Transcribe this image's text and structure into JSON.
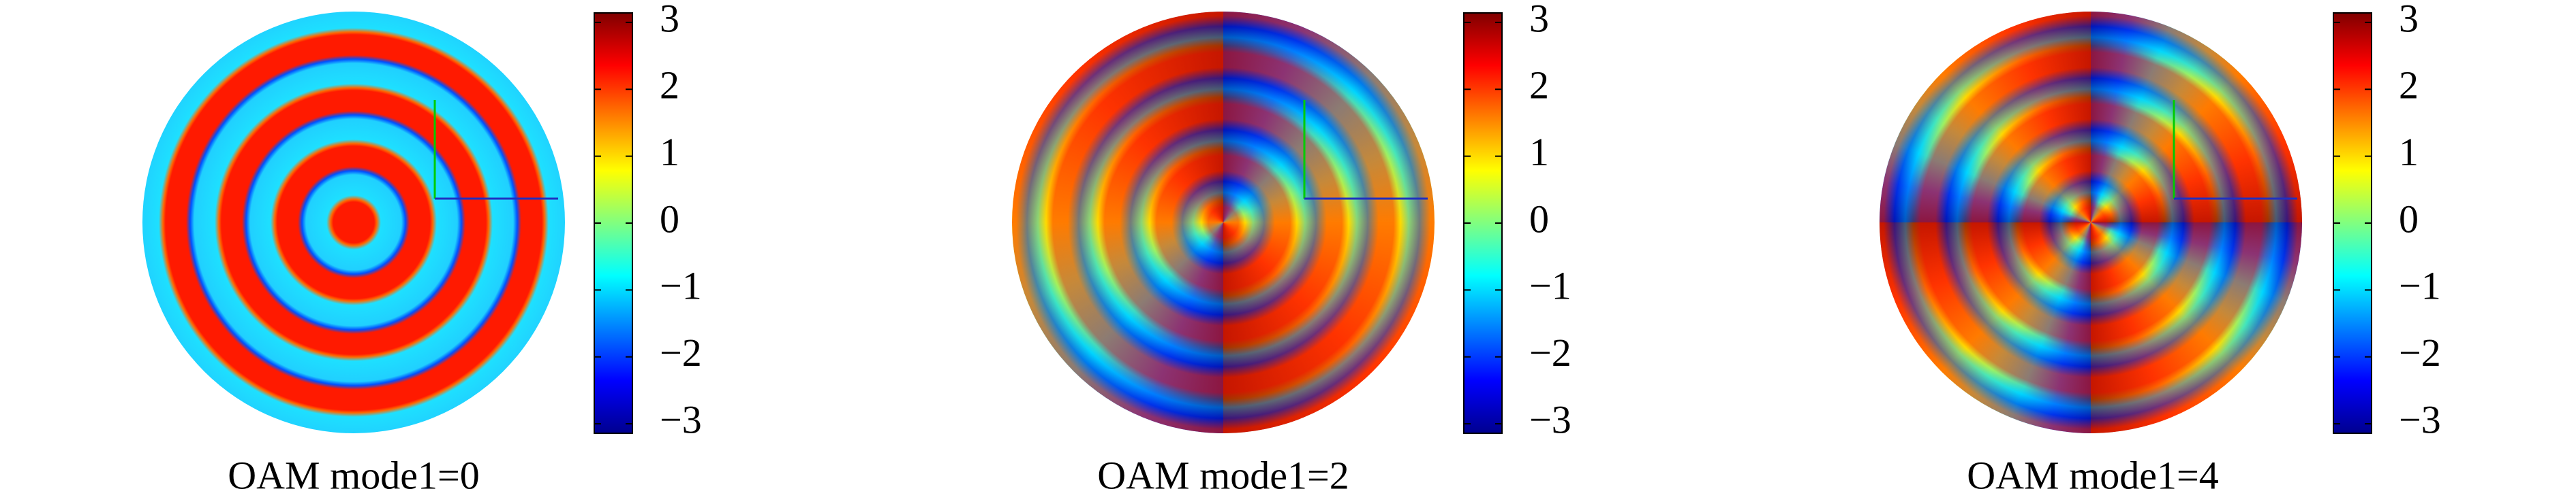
{
  "chart_data": [
    {
      "type": "image",
      "title": "OAM mode1=0",
      "clim": [
        -3.1416,
        3.1416
      ],
      "cticks": [
        {
          "value": -3,
          "label": "−3"
        },
        {
          "value": -2,
          "label": "−2"
        },
        {
          "value": -1,
          "label": "−1"
        },
        0,
        1,
        2,
        3
      ]
    },
    {
      "type": "image",
      "title": "OAM mode1=2",
      "clim": [
        -3.1416,
        3.1416
      ],
      "cticks": [
        {
          "value": -3,
          "label": "−3"
        },
        {
          "value": -2,
          "label": "−2"
        },
        {
          "value": -1,
          "label": "−1"
        },
        0,
        1,
        2,
        3
      ]
    },
    {
      "type": "image",
      "title": "OAM mode1=4",
      "clim": [
        -3.1416,
        3.1416
      ],
      "cticks": [
        {
          "value": -3,
          "label": "−3"
        },
        {
          "value": -2,
          "label": "−2"
        },
        {
          "value": -1,
          "label": "−1"
        },
        0,
        1,
        2,
        3
      ]
    }
  ]
}
